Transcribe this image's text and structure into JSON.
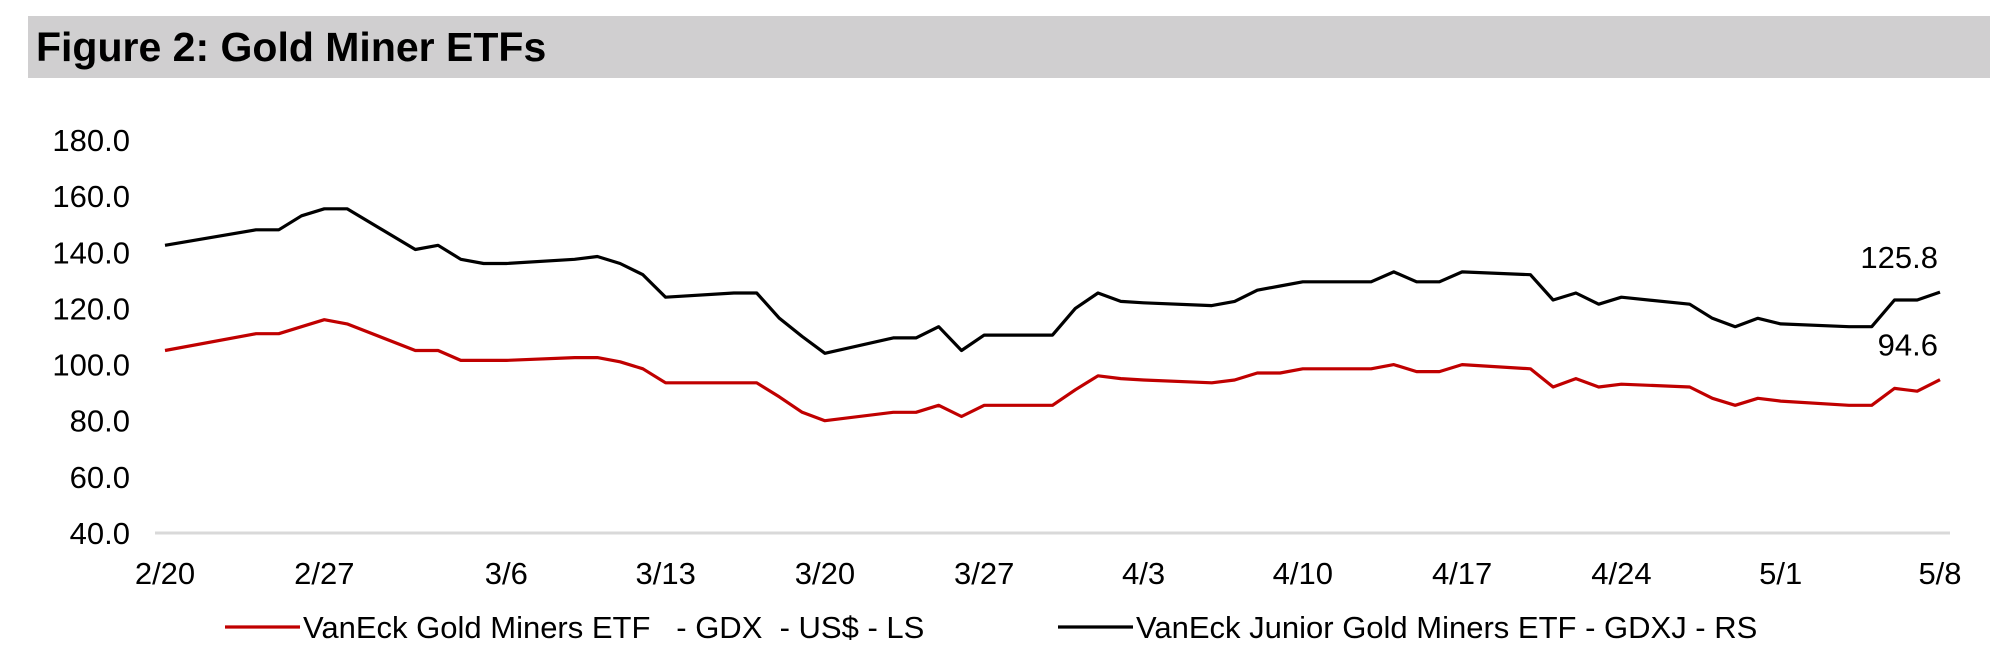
{
  "title": "Figure 2: Gold Miner ETFs",
  "chart_data": {
    "type": "line",
    "title": "Figure 2: Gold Miner ETFs",
    "x_ticks": [
      "2/20",
      "2/27",
      "3/6",
      "3/13",
      "3/20",
      "3/27",
      "4/3",
      "4/10",
      "4/17",
      "4/24",
      "5/1",
      "5/8"
    ],
    "y_ticks": [
      "40.0",
      "60.0",
      "80.0",
      "100.0",
      "120.0",
      "140.0",
      "160.0",
      "180.0"
    ],
    "ylim": [
      40,
      180
    ],
    "x_day_range": [
      0,
      78
    ],
    "grid": false,
    "legend_position": "bottom",
    "series": [
      {
        "name": "VanEck Gold Miners ETF   - GDX  - US$ - LS",
        "color": "#c00000",
        "end_label": "94.6",
        "x": [
          "2/20",
          "2/24",
          "2/25",
          "2/26",
          "2/27",
          "2/28",
          "3/2",
          "3/3",
          "3/4",
          "3/5",
          "3/6",
          "3/9",
          "3/10",
          "3/11",
          "3/12",
          "3/13",
          "3/16",
          "3/17",
          "3/18",
          "3/19",
          "3/20",
          "3/23",
          "3/24",
          "3/25",
          "3/26",
          "3/27",
          "3/30",
          "3/31",
          "4/1",
          "4/2",
          "4/3",
          "4/6",
          "4/7",
          "4/8",
          "4/9",
          "4/10",
          "4/13",
          "4/14",
          "4/15",
          "4/16",
          "4/17",
          "4/20",
          "4/21",
          "4/22",
          "4/23",
          "4/24",
          "4/27",
          "4/28",
          "4/29",
          "4/30",
          "5/1",
          "5/4",
          "5/5",
          "5/6",
          "5/7",
          "5/8"
        ],
        "y": [
          105,
          111,
          111,
          113.5,
          116,
          114.5,
          105,
          105,
          101.5,
          101.5,
          101.5,
          102.5,
          102.5,
          101,
          98.5,
          93.5,
          93.5,
          93.5,
          88.5,
          83,
          80,
          83,
          83,
          85.5,
          81.5,
          85.5,
          85.5,
          91,
          96,
          95,
          94.5,
          93.5,
          94.5,
          97,
          97,
          98.5,
          98.5,
          100,
          97.5,
          97.5,
          100,
          98.5,
          92,
          95,
          92,
          93,
          92,
          88,
          85.5,
          88,
          87,
          85.5,
          85.5,
          91.5,
          90.5,
          94.6
        ]
      },
      {
        "name": "VanEck Junior Gold Miners ETF - GDXJ - RS",
        "color": "#000000",
        "end_label": "125.8",
        "x": [
          "2/20",
          "2/24",
          "2/25",
          "2/26",
          "2/27",
          "2/28",
          "3/2",
          "3/3",
          "3/4",
          "3/5",
          "3/6",
          "3/9",
          "3/10",
          "3/11",
          "3/12",
          "3/13",
          "3/16",
          "3/17",
          "3/18",
          "3/19",
          "3/20",
          "3/23",
          "3/24",
          "3/25",
          "3/26",
          "3/27",
          "3/30",
          "3/31",
          "4/1",
          "4/2",
          "4/3",
          "4/6",
          "4/7",
          "4/8",
          "4/9",
          "4/10",
          "4/13",
          "4/14",
          "4/15",
          "4/16",
          "4/17",
          "4/20",
          "4/21",
          "4/22",
          "4/23",
          "4/24",
          "4/27",
          "4/28",
          "4/29",
          "4/30",
          "5/1",
          "5/4",
          "5/5",
          "5/6",
          "5/7",
          "5/8"
        ],
        "y": [
          142.5,
          148,
          148,
          153,
          155.5,
          155.5,
          141,
          142.5,
          137.5,
          136,
          136,
          137.5,
          138.5,
          136,
          132,
          124,
          125.5,
          125.5,
          116.5,
          110,
          104,
          109.5,
          109.5,
          113.5,
          105,
          110.5,
          110.5,
          120,
          125.5,
          122.5,
          122,
          121,
          122.5,
          126.5,
          128,
          129.5,
          129.5,
          133,
          129.5,
          129.5,
          133,
          132,
          123,
          125.5,
          121.5,
          124,
          121.5,
          116.5,
          113.5,
          116.5,
          114.5,
          113.5,
          113.5,
          123,
          123,
          125.8
        ]
      }
    ]
  }
}
